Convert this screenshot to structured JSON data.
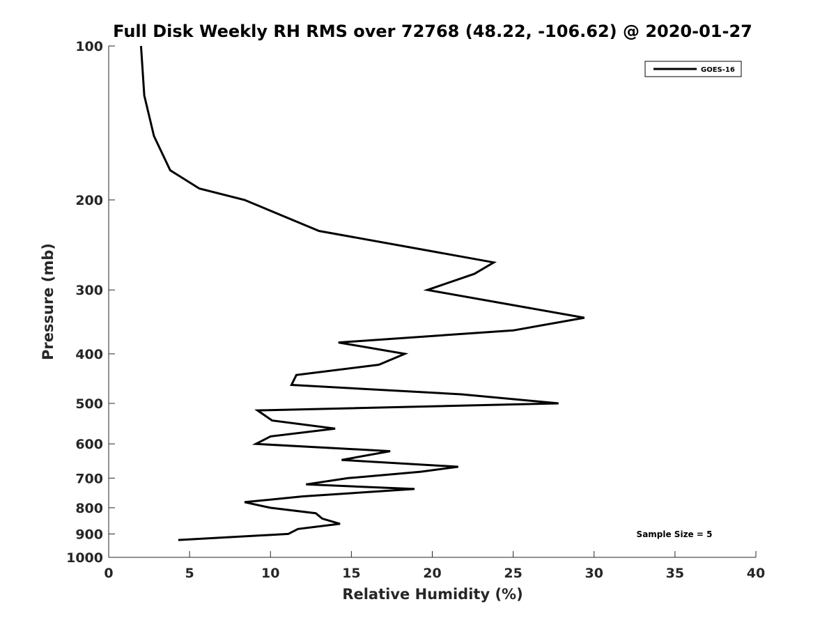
{
  "chart_data": {
    "type": "line",
    "title": "Full Disk Weekly RH RMS over 72768 (48.22, -106.62) @ 2020-01-27",
    "xlabel": "Relative Humidity (%)",
    "ylabel": "Pressure (mb)",
    "xlim": [
      0,
      40
    ],
    "ylim": [
      100,
      1000
    ],
    "yscale": "log",
    "y_reversed": true,
    "xticks": [
      0,
      5,
      10,
      15,
      20,
      25,
      30,
      35,
      40
    ],
    "yticks": [
      100,
      200,
      300,
      400,
      500,
      600,
      700,
      800,
      900,
      1000
    ],
    "grid": false,
    "legend_position": "top-right",
    "series": [
      {
        "name": "GOES-16",
        "color": "#000000",
        "points": [
          [
            2.0,
            100
          ],
          [
            2.2,
            125
          ],
          [
            2.8,
            150
          ],
          [
            3.8,
            175
          ],
          [
            5.6,
            190
          ],
          [
            8.4,
            200
          ],
          [
            13.0,
            230
          ],
          [
            23.8,
            265
          ],
          [
            22.6,
            279
          ],
          [
            19.7,
            300
          ],
          [
            29.4,
            340
          ],
          [
            25.0,
            360
          ],
          [
            14.2,
            380
          ],
          [
            18.3,
            400
          ],
          [
            16.7,
            420
          ],
          [
            11.6,
            440
          ],
          [
            11.3,
            460
          ],
          [
            21.8,
            480
          ],
          [
            27.8,
            500
          ],
          [
            9.2,
            516
          ],
          [
            10.1,
            540
          ],
          [
            14.0,
            560
          ],
          [
            10.0,
            580
          ],
          [
            9.1,
            600
          ],
          [
            17.4,
            620
          ],
          [
            14.4,
            645
          ],
          [
            21.6,
            665
          ],
          [
            19.3,
            680
          ],
          [
            14.8,
            700
          ],
          [
            12.2,
            720
          ],
          [
            18.9,
            735
          ],
          [
            12.0,
            760
          ],
          [
            8.4,
            780
          ],
          [
            10.0,
            800
          ],
          [
            12.8,
            820
          ],
          [
            13.2,
            840
          ],
          [
            14.3,
            860
          ],
          [
            11.7,
            880
          ],
          [
            11.1,
            900
          ],
          [
            4.3,
            925
          ]
        ]
      }
    ],
    "annotation": "Sample Size = 5"
  }
}
